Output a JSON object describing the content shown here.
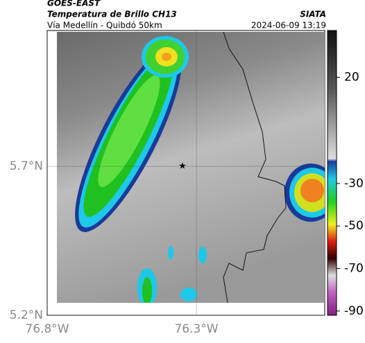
{
  "header": {
    "source": "GOES-EAST",
    "title": "Temperatura de Brillo CH13",
    "subtitle": "Vía Medellín - Quibdó 50km",
    "org": "SIATA",
    "datetime": "2024-06-09 13:19"
  },
  "map": {
    "lat_lim": [
      5.2,
      6.156
    ],
    "lon_lim": [
      -76.8,
      -75.87
    ],
    "lat_ticks": [
      {
        "value": 5.7,
        "label": "5.7°N"
      },
      {
        "value": 5.2,
        "label": "5.2°N"
      }
    ],
    "lon_ticks": [
      {
        "value": -76.8,
        "label": "76.8°W"
      },
      {
        "value": -76.3,
        "label": "76.3°W"
      }
    ]
  },
  "colorbar": {
    "lim": [
      42,
      -92
    ],
    "ticks": [
      20,
      -30,
      -50,
      -70,
      -90
    ]
  }
}
